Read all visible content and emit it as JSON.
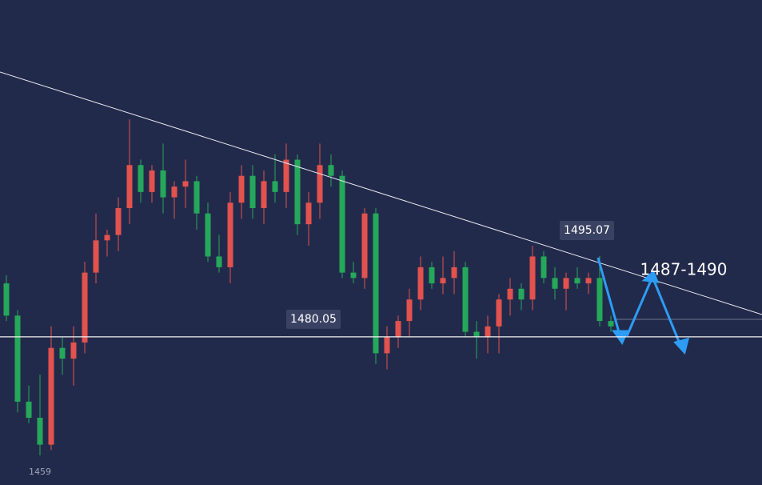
{
  "chart_data": {
    "type": "candlestick",
    "ylim": [
      1452.5,
      1542.7
    ],
    "up_color": "#e2524e",
    "down_color": "#25a85a",
    "ohlc": [
      [
        1490,
        1491.5,
        1483,
        1484
      ],
      [
        1484,
        1485,
        1466,
        1468
      ],
      [
        1468,
        1471,
        1464,
        1465
      ],
      [
        1465,
        1473,
        1458,
        1460
      ],
      [
        1460,
        1482,
        1459,
        1478
      ],
      [
        1478,
        1480,
        1473,
        1476
      ],
      [
        1476,
        1482,
        1471,
        1479
      ],
      [
        1479,
        1494,
        1477,
        1492
      ],
      [
        1492,
        1503,
        1490,
        1498
      ],
      [
        1498,
        1500,
        1495,
        1499
      ],
      [
        1499,
        1506,
        1496,
        1504
      ],
      [
        1504,
        1520.5,
        1501,
        1512
      ],
      [
        1512,
        1513,
        1505,
        1507
      ],
      [
        1507,
        1512,
        1505,
        1511
      ],
      [
        1511,
        1516,
        1503,
        1506
      ],
      [
        1506,
        1509,
        1502,
        1508
      ],
      [
        1508,
        1513,
        1504,
        1509
      ],
      [
        1509,
        1510,
        1500,
        1503
      ],
      [
        1503,
        1505,
        1494,
        1495
      ],
      [
        1495,
        1499,
        1492,
        1493
      ],
      [
        1493,
        1507,
        1490,
        1505
      ],
      [
        1505,
        1512,
        1502,
        1510
      ],
      [
        1510,
        1512,
        1502,
        1504
      ],
      [
        1504,
        1511,
        1501,
        1509
      ],
      [
        1509,
        1514,
        1505,
        1507
      ],
      [
        1507,
        1516,
        1504,
        1513
      ],
      [
        1513,
        1514,
        1499,
        1501
      ],
      [
        1501,
        1507,
        1497,
        1505
      ],
      [
        1505,
        1516,
        1502,
        1512
      ],
      [
        1512,
        1514,
        1508,
        1510
      ],
      [
        1510,
        1511,
        1491,
        1492
      ],
      [
        1492,
        1494,
        1490,
        1491
      ],
      [
        1491,
        1504,
        1489,
        1503
      ],
      [
        1503,
        1504,
        1475,
        1477
      ],
      [
        1477,
        1482,
        1474,
        1480
      ],
      [
        1480,
        1484,
        1478,
        1483
      ],
      [
        1483,
        1489,
        1480,
        1487
      ],
      [
        1487,
        1495,
        1485,
        1493
      ],
      [
        1493,
        1494,
        1489,
        1490
      ],
      [
        1490,
        1495,
        1488,
        1491
      ],
      [
        1491,
        1496,
        1488,
        1493
      ],
      [
        1493,
        1494,
        1480,
        1481
      ],
      [
        1481,
        1483,
        1476,
        1480
      ],
      [
        1480,
        1484,
        1477,
        1482
      ],
      [
        1482,
        1488,
        1477,
        1487
      ],
      [
        1487,
        1491,
        1484,
        1489
      ],
      [
        1489,
        1490,
        1485,
        1487
      ],
      [
        1487,
        1497,
        1485,
        1495
      ],
      [
        1495,
        1496,
        1490,
        1491
      ],
      [
        1491,
        1493,
        1487,
        1489
      ],
      [
        1489,
        1492,
        1485,
        1491
      ],
      [
        1491,
        1493,
        1489,
        1490
      ],
      [
        1490,
        1492,
        1488,
        1491
      ],
      [
        1491,
        1495.07,
        1482,
        1483
      ],
      [
        1483,
        1484,
        1481,
        1482
      ]
    ],
    "support": 1480.05,
    "high_label": 1495.07,
    "target": "1487-1490",
    "low_label": 1459
  }
}
